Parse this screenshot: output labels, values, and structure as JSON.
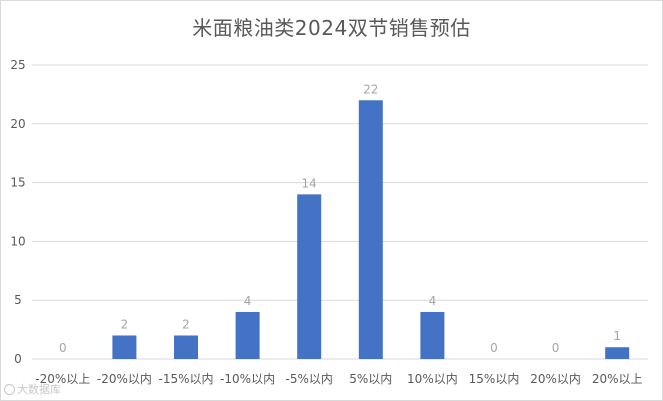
{
  "chart_data": {
    "type": "bar",
    "title": "米面粮油类2024双节销售预估",
    "categories": [
      "-20%以上",
      "-20%以内",
      "-15%以内",
      "-10%以内",
      "-5%以内",
      "5%以内",
      "10%以内",
      "15%以内",
      "20%以内",
      "20%以上"
    ],
    "values": [
      0,
      2,
      2,
      4,
      14,
      22,
      4,
      0,
      0,
      1
    ],
    "ylim": [
      0,
      25
    ],
    "yticks": [
      0,
      5,
      10,
      15,
      20,
      25
    ],
    "xlabel": "",
    "ylabel": "",
    "grid": true,
    "bar_color": "#4472c4",
    "data_labels": true
  },
  "watermark": {
    "text": "大数据库"
  }
}
